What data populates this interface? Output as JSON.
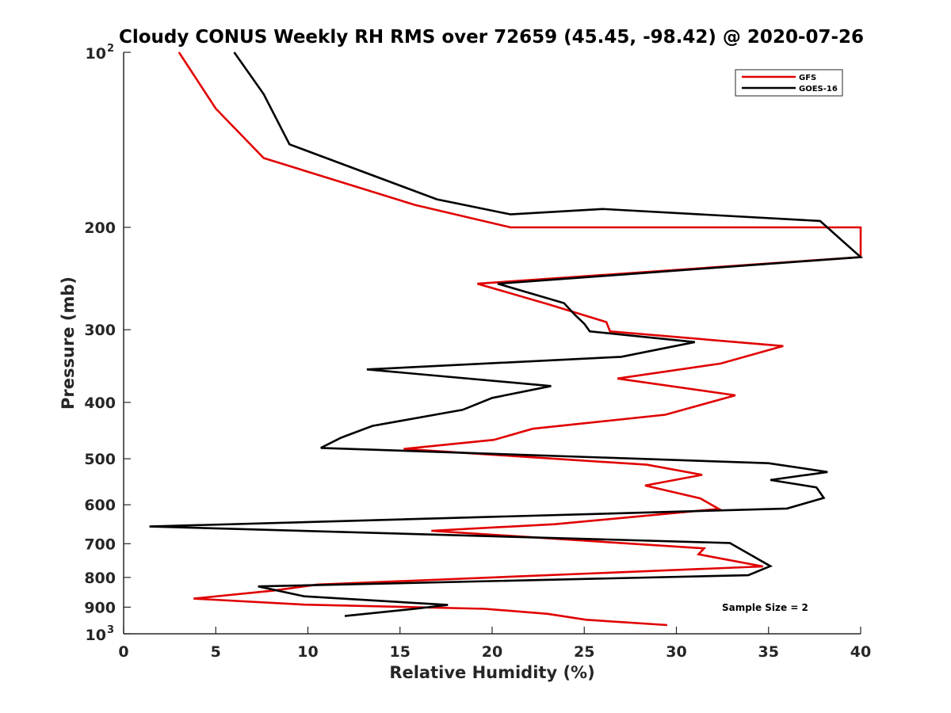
{
  "chart_data": {
    "type": "line",
    "title": "Cloudy CONUS Weekly RH RMS over 72659 (45.45, -98.42) @ 2020-07-26",
    "xlabel": "Relative Humidity (%)",
    "ylabel": "Pressure (mb)",
    "xlim": [
      0,
      40
    ],
    "ylim": [
      100,
      1000
    ],
    "y_scale": "log",
    "y_reversed": true,
    "x_ticks": [
      "0",
      "5",
      "10",
      "15",
      "20",
      "25",
      "30",
      "35",
      "40"
    ],
    "y_ticks": [
      {
        "value": 100,
        "label": "10",
        "exp": "2"
      },
      {
        "value": 200,
        "label": "200"
      },
      {
        "value": 300,
        "label": "300"
      },
      {
        "value": 400,
        "label": "400"
      },
      {
        "value": 500,
        "label": "500"
      },
      {
        "value": 600,
        "label": "600"
      },
      {
        "value": 700,
        "label": "700"
      },
      {
        "value": 800,
        "label": "800"
      },
      {
        "value": 900,
        "label": "900"
      },
      {
        "value": 1000,
        "label": "10",
        "exp": "3"
      }
    ],
    "legend_position": "top-right",
    "grid": false,
    "annotation": "Sample Size = 2",
    "series": [
      {
        "name": "GFS",
        "color": "#e00000",
        "x": [
          3,
          5,
          7.6,
          15.8,
          21,
          40,
          40,
          19.2,
          23,
          26.2,
          26.4,
          35.8,
          32.4,
          26.8,
          33.2,
          29.4,
          22.2,
          20.1,
          15.2,
          28.4,
          31.4,
          28.3,
          31.3,
          32.3,
          23.4,
          16.7,
          31.5,
          31.2,
          34.7,
          10.5,
          8.1,
          3.8,
          9.8,
          19.6,
          23,
          25.1,
          29.5
        ],
        "y": [
          100,
          125,
          152,
          183,
          200,
          200,
          225,
          250,
          271,
          291,
          302,
          320,
          343,
          364,
          389,
          420,
          444,
          464,
          481,
          512,
          533,
          556,
          585,
          610,
          648,
          665,
          713,
          730,
          766,
          823,
          843,
          870,
          891,
          906,
          924,
          946,
          966
        ]
      },
      {
        "name": "GOES-16",
        "color": "#000000",
        "x": [
          6,
          7.6,
          9,
          17,
          21,
          26,
          37.8,
          40,
          20.3,
          23.9,
          24.5,
          25,
          25.3,
          31,
          27,
          13.2,
          23.2,
          20,
          18.4,
          13.5,
          11.8,
          10.7,
          35,
          38.2,
          35.1,
          37.6,
          38,
          36,
          1.4,
          32.9,
          35.1,
          33.9,
          7.3,
          9.8,
          17.6,
          15.8,
          12
        ],
        "y": [
          100,
          118,
          144,
          179,
          190,
          186,
          195,
          225,
          250,
          270,
          283,
          293,
          302,
          315,
          334,
          351,
          375,
          393,
          412,
          439,
          460,
          479,
          509,
          527,
          544,
          560,
          584,
          609,
          654,
          698,
          765,
          793,
          829,
          862,
          892,
          906,
          932
        ]
      }
    ]
  }
}
